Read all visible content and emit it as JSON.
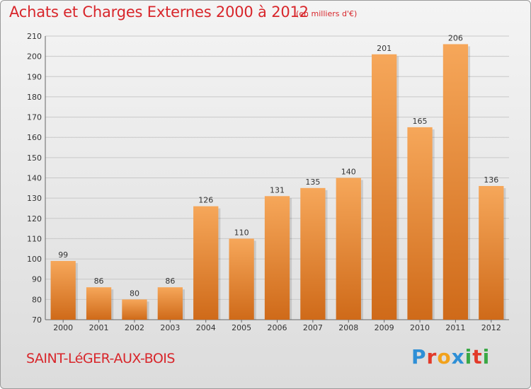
{
  "header": {
    "title": "Achats et Charges Externes 2000 à 2012",
    "subtitle": "(en milliers d'€)"
  },
  "footer": {
    "town": "SAINT-LéGER-AUX-BOIS",
    "logo_letters": [
      {
        "char": "P",
        "color": "#2e8fd6"
      },
      {
        "char": "r",
        "color": "#e23a2a"
      },
      {
        "char": "o",
        "color": "#f2a21c"
      },
      {
        "char": "x",
        "color": "#2e8fd6"
      },
      {
        "char": "i",
        "color": "#3aa845"
      },
      {
        "char": "t",
        "color": "#e23a2a"
      },
      {
        "char": "i",
        "color": "#3aa845"
      }
    ]
  },
  "colors": {
    "bar_light": "#f6a75a",
    "bar_dark": "#cf6a19",
    "grid": "#c8c8c8",
    "title": "#d8262b"
  },
  "chart_data": {
    "type": "bar",
    "title": "Achats et Charges Externes 2000 à 2012",
    "subtitle": "(en milliers d'€)",
    "categories": [
      "2000",
      "2001",
      "2002",
      "2003",
      "2004",
      "2005",
      "2006",
      "2007",
      "2008",
      "2009",
      "2010",
      "2011",
      "2012"
    ],
    "values": [
      99,
      86,
      80,
      86,
      126,
      110,
      131,
      135,
      140,
      201,
      165,
      206,
      136
    ],
    "ylim": [
      70,
      210
    ],
    "yticks": [
      70,
      80,
      90,
      100,
      110,
      120,
      130,
      140,
      150,
      160,
      170,
      180,
      190,
      200,
      210
    ],
    "grid": true,
    "xlabel": "",
    "ylabel": ""
  }
}
